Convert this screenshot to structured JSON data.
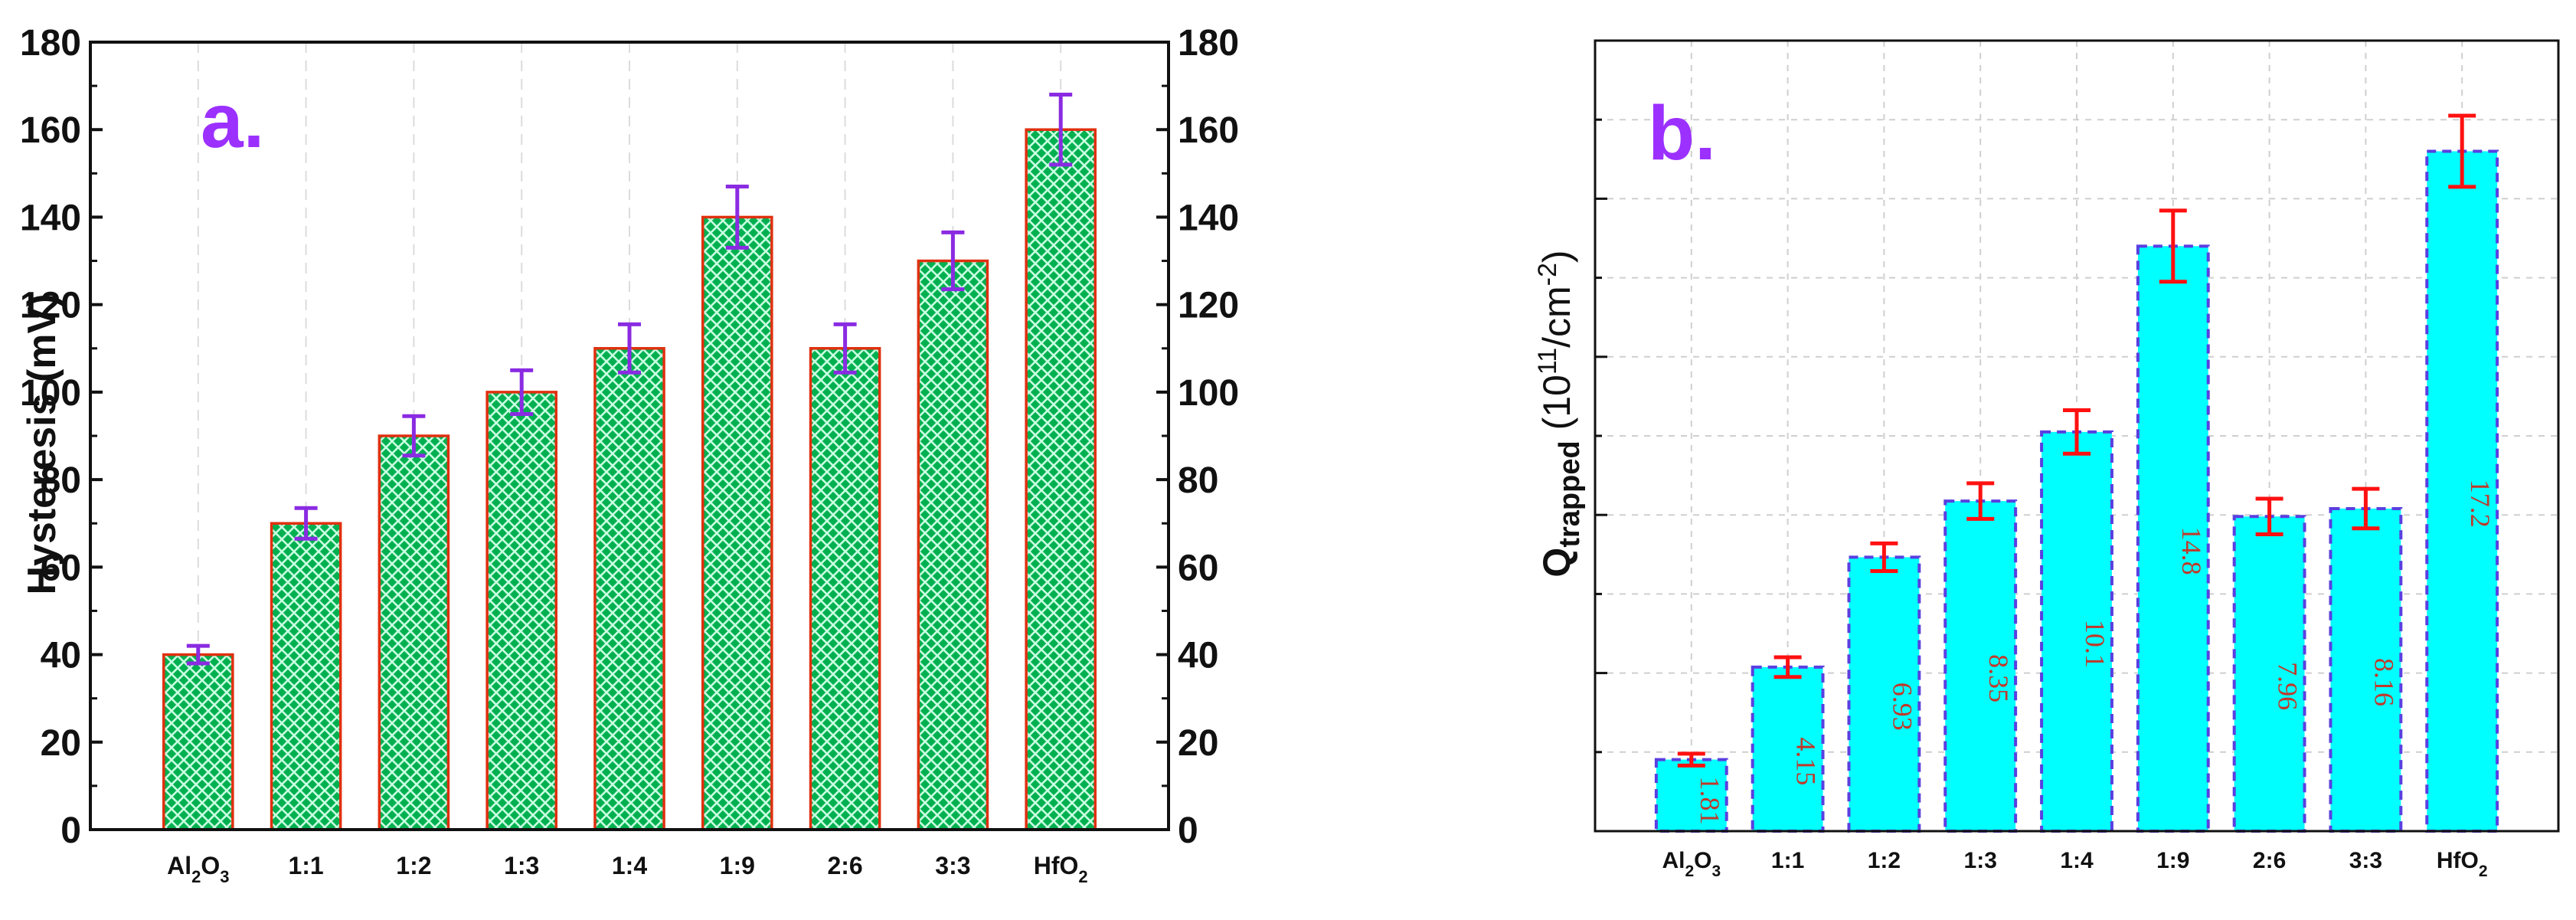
{
  "chart_data": [
    {
      "type": "bar",
      "panel_label": "a.",
      "ylabel": "Hysteresis (mV)",
      "ylim": [
        0,
        180
      ],
      "yticks": [
        "0",
        "20",
        "40",
        "60",
        "80",
        "100",
        "120",
        "140",
        "160",
        "180"
      ],
      "right_axis_ticks": true,
      "categories": [
        "Al2O3",
        "1:1",
        "1:2",
        "1:3",
        "1:4",
        "1:9",
        "2:6",
        "3:3",
        "HfO2"
      ],
      "values": [
        40,
        70,
        90,
        100,
        110,
        140,
        110,
        130,
        160
      ],
      "errors": [
        2,
        3.5,
        4.5,
        5,
        5.5,
        7,
        5.5,
        6.5,
        8
      ],
      "fill": "green crosshatch",
      "colors": {
        "bar_fill": "#00b050",
        "hatch": "#c8ffe0",
        "bar_edge": "#e03010",
        "error_bar": "#8a2be2",
        "panel_label": "#9b30ff"
      }
    },
    {
      "type": "bar",
      "panel_label": "b.",
      "ylabel_main": "Q",
      "ylabel_sub": "trapped",
      "ylabel_unit_pre": " (10",
      "ylabel_unit_sup1": "11",
      "ylabel_unit_mid": "/cm",
      "ylabel_unit_sup2": "-2",
      "ylabel_unit_post": ")",
      "ylim": [
        0,
        20
      ],
      "yticks_labeled": false,
      "categories": [
        "Al2O3",
        "1:1",
        "1:2",
        "1:3",
        "1:4",
        "1:9",
        "2:6",
        "3:3",
        "HfO2"
      ],
      "values": [
        1.81,
        4.15,
        6.93,
        8.35,
        10.1,
        14.8,
        7.96,
        8.16,
        17.2
      ],
      "data_labels": [
        "1.81",
        "4.15",
        "6.93",
        "8.35",
        "10.1",
        "14.8",
        "7.96",
        "8.16",
        "17.2"
      ],
      "errors": [
        0.15,
        0.25,
        0.35,
        0.45,
        0.55,
        0.9,
        0.45,
        0.5,
        0.9
      ],
      "grid": true,
      "colors": {
        "bar_fill": "#00ffff",
        "bar_edge": "#5a3fe0",
        "error_bar": "#ff1010",
        "data_label": "#c0392b",
        "panel_label": "#9b30ff"
      }
    }
  ]
}
